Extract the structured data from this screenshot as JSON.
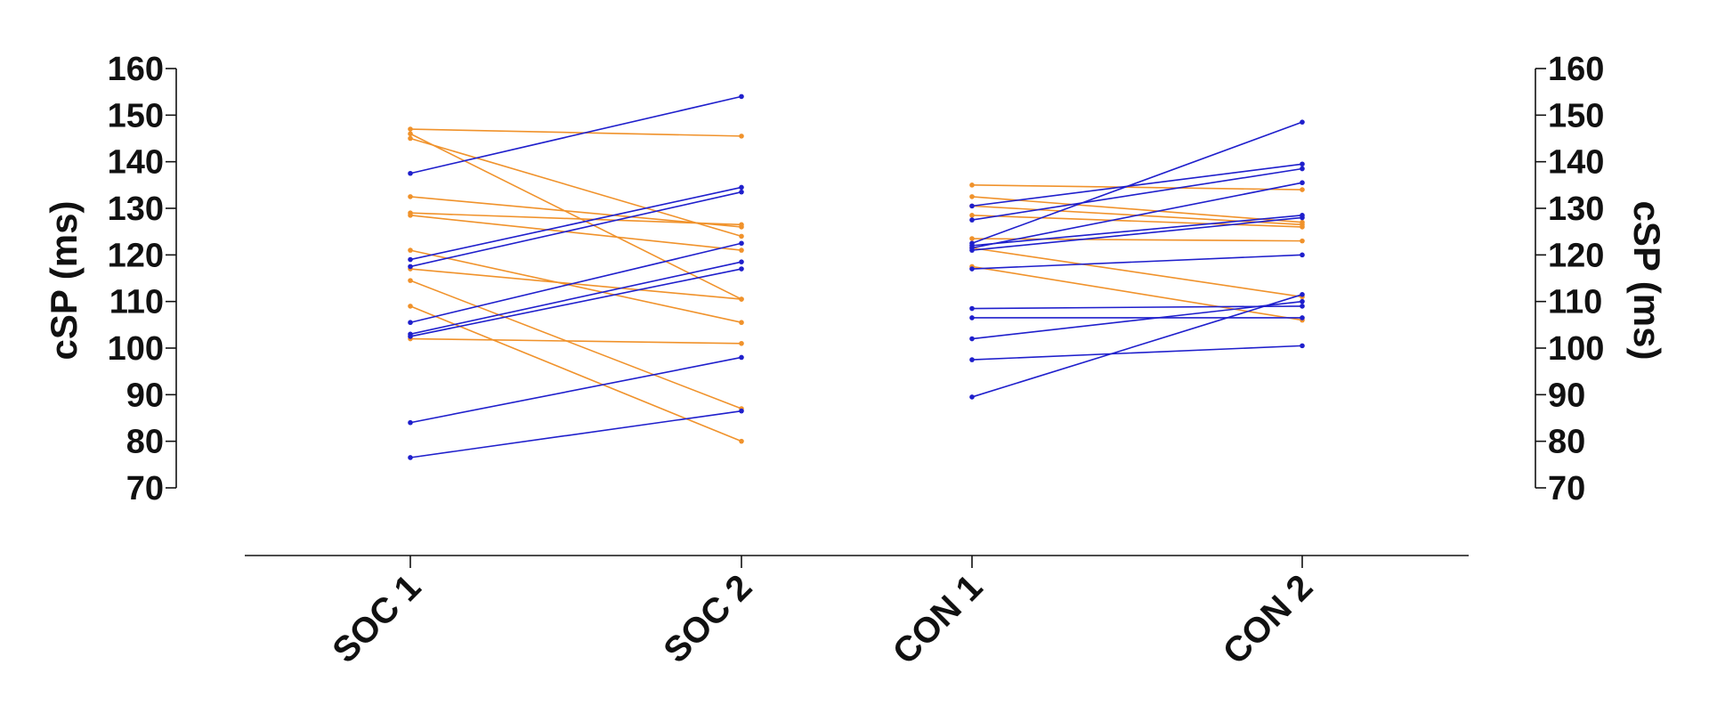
{
  "chart_data": {
    "type": "line",
    "title": "",
    "ylabel": "cSP (ms)",
    "ylabel_right": "cSP (ms)",
    "ylim": [
      70,
      160
    ],
    "yticks": [
      160,
      150,
      140,
      130,
      120,
      110,
      100,
      90,
      80,
      70
    ],
    "categories": [
      "SOC 1",
      "SOC 2",
      "CON 1",
      "CON 2"
    ],
    "colors": {
      "orange": "#f0922b",
      "blue": "#1f1fcc"
    },
    "groups": [
      {
        "name": "SOC",
        "x": [
          "SOC 1",
          "SOC 2"
        ],
        "series": [
          {
            "color": "orange",
            "values": [
              147,
              145.5
            ]
          },
          {
            "color": "orange",
            "values": [
              146,
              110.5
            ]
          },
          {
            "color": "orange",
            "values": [
              145,
              124
            ]
          },
          {
            "color": "orange",
            "values": [
              132.5,
              126
            ]
          },
          {
            "color": "orange",
            "values": [
              129,
              126.5
            ]
          },
          {
            "color": "orange",
            "values": [
              128.5,
              121
            ]
          },
          {
            "color": "orange",
            "values": [
              121,
              105.5
            ]
          },
          {
            "color": "orange",
            "values": [
              117,
              110.5
            ]
          },
          {
            "color": "orange",
            "values": [
              114.5,
              87
            ]
          },
          {
            "color": "orange",
            "values": [
              109,
              80
            ]
          },
          {
            "color": "orange",
            "values": [
              102,
              101
            ]
          },
          {
            "color": "blue",
            "values": [
              137.5,
              154
            ]
          },
          {
            "color": "blue",
            "values": [
              119,
              134.5
            ]
          },
          {
            "color": "blue",
            "values": [
              117.5,
              133.5
            ]
          },
          {
            "color": "blue",
            "values": [
              105.5,
              122.5
            ]
          },
          {
            "color": "blue",
            "values": [
              103,
              118.5
            ]
          },
          {
            "color": "blue",
            "values": [
              102.5,
              117
            ]
          },
          {
            "color": "blue",
            "values": [
              84,
              98
            ]
          },
          {
            "color": "blue",
            "values": [
              76.5,
              86.5
            ]
          }
        ]
      },
      {
        "name": "CON",
        "x": [
          "CON 1",
          "CON 2"
        ],
        "series": [
          {
            "color": "orange",
            "values": [
              135,
              134
            ]
          },
          {
            "color": "orange",
            "values": [
              132.5,
              127
            ]
          },
          {
            "color": "orange",
            "values": [
              130.5,
              126.5
            ]
          },
          {
            "color": "orange",
            "values": [
              128.5,
              126
            ]
          },
          {
            "color": "orange",
            "values": [
              123.5,
              123
            ]
          },
          {
            "color": "orange",
            "values": [
              121.5,
              111
            ]
          },
          {
            "color": "orange",
            "values": [
              117.5,
              106
            ]
          },
          {
            "color": "blue",
            "values": [
              130.5,
              139.5
            ]
          },
          {
            "color": "blue",
            "values": [
              127.5,
              138.5
            ]
          },
          {
            "color": "blue",
            "values": [
              122.5,
              148.5
            ]
          },
          {
            "color": "blue",
            "values": [
              122,
              128.5
            ]
          },
          {
            "color": "blue",
            "values": [
              121.5,
              135.5
            ]
          },
          {
            "color": "blue",
            "values": [
              121,
              128
            ]
          },
          {
            "color": "blue",
            "values": [
              117,
              120
            ]
          },
          {
            "color": "blue",
            "values": [
              108.5,
              109
            ]
          },
          {
            "color": "blue",
            "values": [
              106.5,
              106.5
            ]
          },
          {
            "color": "blue",
            "values": [
              102,
              110
            ]
          },
          {
            "color": "blue",
            "values": [
              97.5,
              100.5
            ]
          },
          {
            "color": "blue",
            "values": [
              89.5,
              111.5
            ]
          }
        ]
      }
    ]
  }
}
